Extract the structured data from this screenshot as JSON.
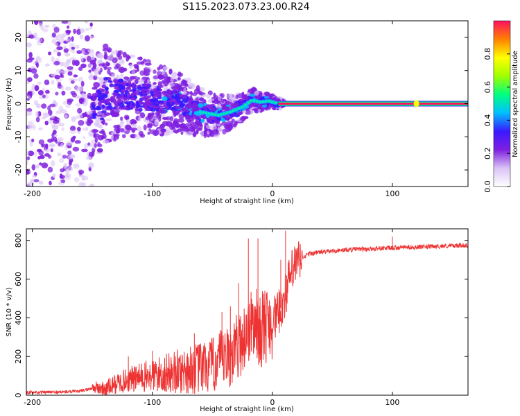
{
  "title": "S115.2023.073.23.00.R24",
  "chart_data": [
    {
      "type": "heatmap",
      "xlabel": "Height of straight line (km)",
      "ylabel": "Frequency (Hz)",
      "xlim": [
        -205,
        163
      ],
      "ylim": [
        -25,
        25
      ],
      "xticks": [
        -200,
        -100,
        0,
        100
      ],
      "yticks": [
        -20,
        -10,
        0,
        10,
        20
      ],
      "colorbar": {
        "label": "Normalized spectral amplitude",
        "range": [
          0,
          1
        ],
        "ticks": [
          "0.0",
          "0.2",
          "0.4",
          "0.6",
          "0.8"
        ]
      },
      "colormap": [
        "#ffffff",
        "#d9c2f5",
        "#7f1fe0",
        "#3a1aff",
        "#00c0ff",
        "#00ff80",
        "#a0ff00",
        "#ffff00",
        "#ff8000",
        "#ff1060"
      ],
      "ridge": [
        {
          "x": -140,
          "y": 3.0
        },
        {
          "x": -120,
          "y": 2.5
        },
        {
          "x": -100,
          "y": 1.5
        },
        {
          "x": -80,
          "y": 0.5
        },
        {
          "x": -60,
          "y": -2.5
        },
        {
          "x": -45,
          "y": -3.5
        },
        {
          "x": -35,
          "y": -2.5
        },
        {
          "x": -25,
          "y": -1.0
        },
        {
          "x": -17,
          "y": 1.0
        },
        {
          "x": -10,
          "y": 0.5
        },
        {
          "x": -3,
          "y": 0.8
        },
        {
          "x": 5,
          "y": 0.0
        },
        {
          "x": 163,
          "y": 0.0
        }
      ],
      "line_from_x": 5,
      "line_to_x": 163,
      "bright_spot_x": 120
    },
    {
      "type": "line",
      "xlabel": "Height of straight line (km)",
      "ylabel": "SNR (10 * v/v)",
      "xlim": [
        -205,
        163
      ],
      "ylim": [
        0,
        860
      ],
      "xticks": [
        -200,
        -100,
        0,
        100
      ],
      "yticks": [
        0,
        200,
        400,
        600,
        800
      ],
      "color": "#ee3333",
      "series": [
        {
          "x": [
            -205,
            -180,
            -160,
            -148,
            -140,
            -130,
            -120,
            -110,
            -100,
            -90,
            -80,
            -70,
            -60,
            -50,
            -45,
            -40,
            -35,
            -30,
            -25,
            -20,
            -15,
            -10,
            -5,
            0,
            5,
            10,
            15,
            20,
            25,
            30,
            40,
            50,
            60,
            70,
            80,
            90,
            100,
            110,
            120,
            140,
            163
          ],
          "y": [
            15,
            15,
            20,
            40,
            30,
            60,
            80,
            90,
            100,
            110,
            120,
            130,
            140,
            150,
            180,
            180,
            200,
            250,
            280,
            340,
            380,
            330,
            370,
            390,
            420,
            500,
            620,
            680,
            710,
            730,
            740,
            745,
            750,
            755,
            755,
            760,
            760,
            765,
            765,
            770,
            775
          ]
        }
      ],
      "spikes": [
        {
          "x": -20,
          "y": 810
        },
        {
          "x": -12,
          "y": 810
        },
        {
          "x": 11,
          "y": 850
        },
        {
          "x": 7,
          "y": 700
        },
        {
          "x": -28,
          "y": 580
        },
        {
          "x": -35,
          "y": 460
        },
        {
          "x": -42,
          "y": 430
        },
        {
          "x": 100,
          "y": 820
        },
        {
          "x": -65,
          "y": 320
        },
        {
          "x": -100,
          "y": 230
        },
        {
          "x": -120,
          "y": 200
        }
      ]
    }
  ]
}
